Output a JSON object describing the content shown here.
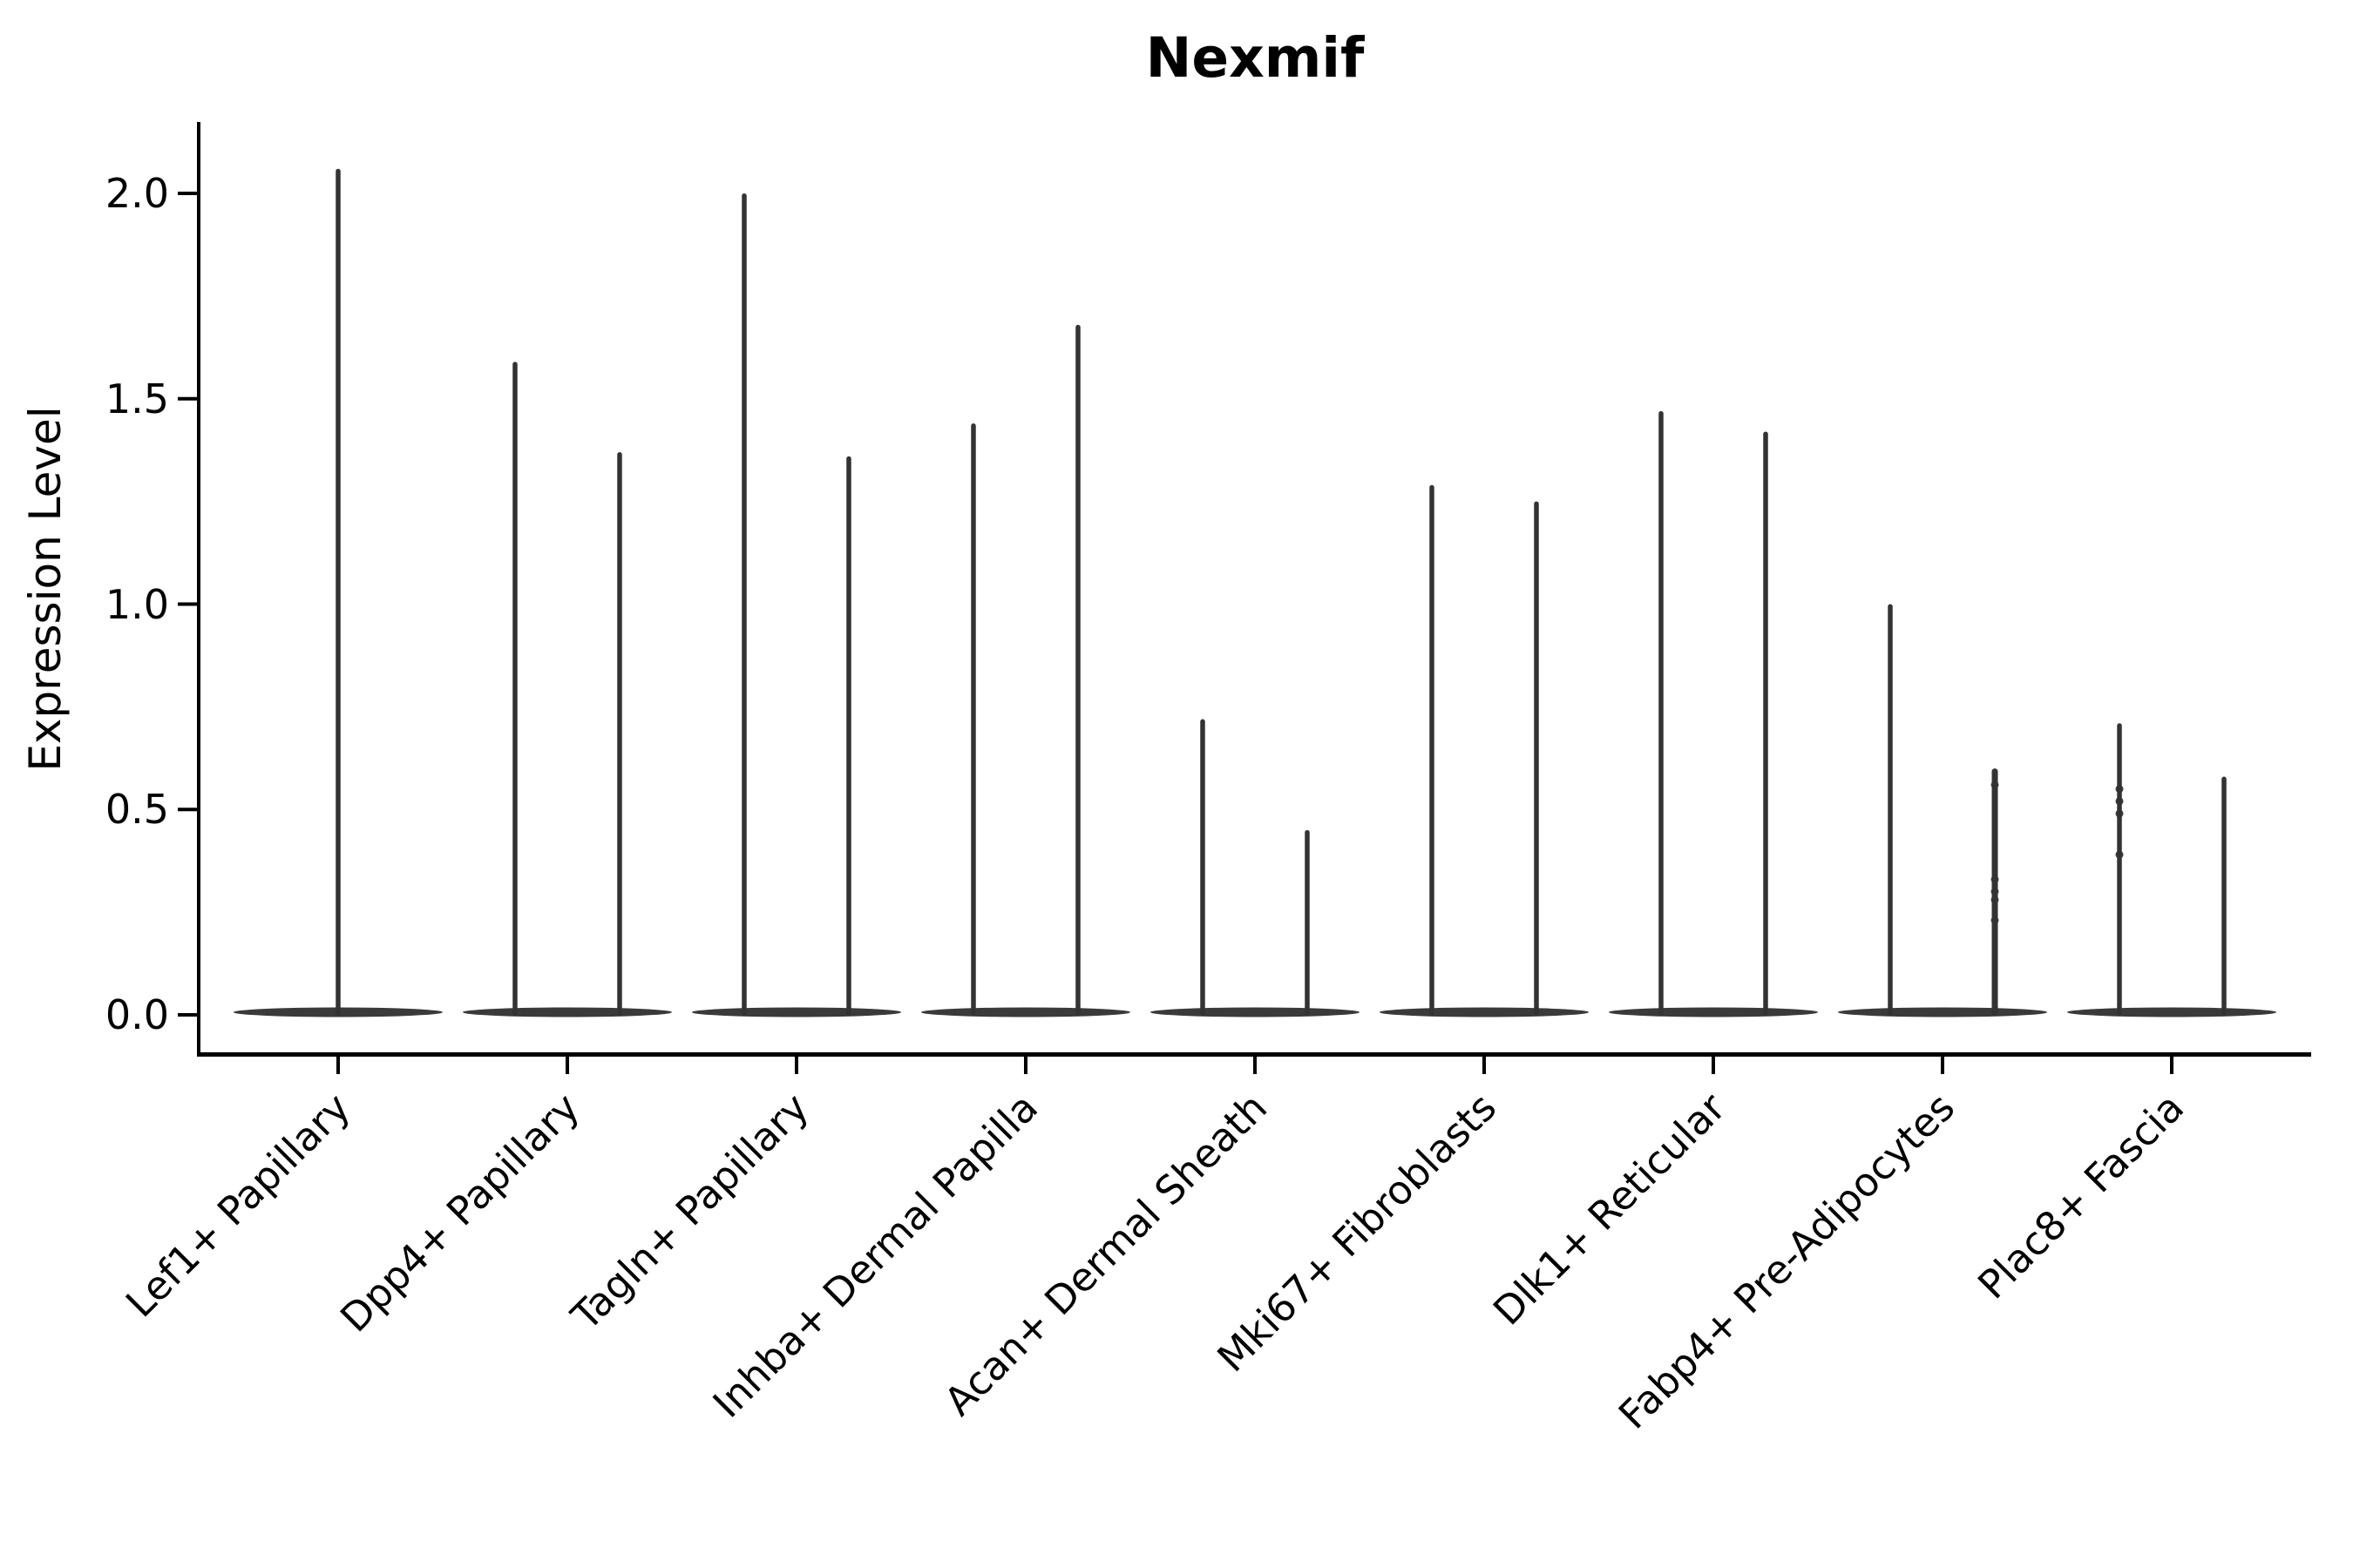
{
  "title": "Nexmif",
  "axes": {
    "ylabel": "Expression Level",
    "ytick_labels": [
      "0.0",
      "0.5",
      "1.0",
      "1.5",
      "2.0"
    ],
    "xtick_labels": [
      "Lef1+ Papillary",
      "Dpp4+ Papillary",
      "Tagln+ Papillary",
      "Inhba+ Dermal Papilla",
      "Acan+ Dermal Sheath",
      "Mki67+ Fibroblasts",
      "Dlk1+ Reticular",
      "Fabp4+ Pre-Adipocytes",
      "Plac8+ Fascia"
    ]
  },
  "chart_data": {
    "type": "violin",
    "title": "Nexmif",
    "xlabel": "",
    "ylabel": "Expression Level",
    "ylim": [
      0,
      2.17
    ],
    "yticks": [
      0.0,
      0.5,
      1.0,
      1.5,
      2.0
    ],
    "grid": false,
    "legend": "none",
    "description": "Single-cell expression violins: each violin is a wide flat lens at 0 with a thin spike up to the maximum expression value; most categories contain two side-by-side violins (split groups), the first category has one centered violin.",
    "categories": [
      "Lef1+ Papillary",
      "Dpp4+ Papillary",
      "Tagln+ Papillary",
      "Inhba+ Dermal Papilla",
      "Acan+ Dermal Sheath",
      "Mki67+ Fibroblasts",
      "Dlk1+ Reticular",
      "Fabp4+ Pre-Adipocytes",
      "Plac8+ Fascia"
    ],
    "violins": [
      {
        "category": "Lef1+ Papillary",
        "spikes": [
          {
            "pos": "center",
            "max": 2.06,
            "beads": []
          }
        ]
      },
      {
        "category": "Dpp4+ Papillary",
        "spikes": [
          {
            "pos": "left",
            "max": 1.59,
            "beads": []
          },
          {
            "pos": "right",
            "max": 1.37,
            "beads": []
          }
        ]
      },
      {
        "category": "Tagln+ Papillary",
        "spikes": [
          {
            "pos": "left",
            "max": 2.0,
            "beads": []
          },
          {
            "pos": "right",
            "max": 1.36,
            "beads": []
          }
        ]
      },
      {
        "category": "Inhba+ Dermal Papilla",
        "spikes": [
          {
            "pos": "left",
            "max": 1.44,
            "beads": []
          },
          {
            "pos": "right",
            "max": 1.68,
            "beads": []
          }
        ]
      },
      {
        "category": "Acan+ Dermal Sheath",
        "spikes": [
          {
            "pos": "left",
            "max": 0.72,
            "beads": []
          },
          {
            "pos": "right",
            "max": 0.45,
            "beads": []
          }
        ]
      },
      {
        "category": "Mki67+ Fibroblasts",
        "spikes": [
          {
            "pos": "left",
            "max": 1.29,
            "beads": []
          },
          {
            "pos": "right",
            "max": 1.25,
            "beads": []
          }
        ]
      },
      {
        "category": "Dlk1+ Reticular",
        "spikes": [
          {
            "pos": "left",
            "max": 1.47,
            "beads": []
          },
          {
            "pos": "right",
            "max": 1.42,
            "beads": []
          }
        ]
      },
      {
        "category": "Fabp4+ Pre-Adipocytes",
        "spikes": [
          {
            "pos": "left",
            "max": 1.0,
            "beads": []
          },
          {
            "pos": "right",
            "max": 0.6,
            "beads": [
              0.56,
              0.33,
              0.3,
              0.28,
              0.23
            ]
          }
        ]
      },
      {
        "category": "Plac8+ Fascia",
        "spikes": [
          {
            "pos": "left",
            "max": 0.71,
            "beads": [
              0.55,
              0.52,
              0.49,
              0.39
            ]
          },
          {
            "pos": "right",
            "max": 0.58,
            "beads": []
          }
        ]
      }
    ],
    "style": {
      "violin_color": "#333333",
      "violin_base_color": "#3a3a3a",
      "axis_color": "#000000",
      "background_color": "#ffffff",
      "text_color": "#000000"
    }
  }
}
